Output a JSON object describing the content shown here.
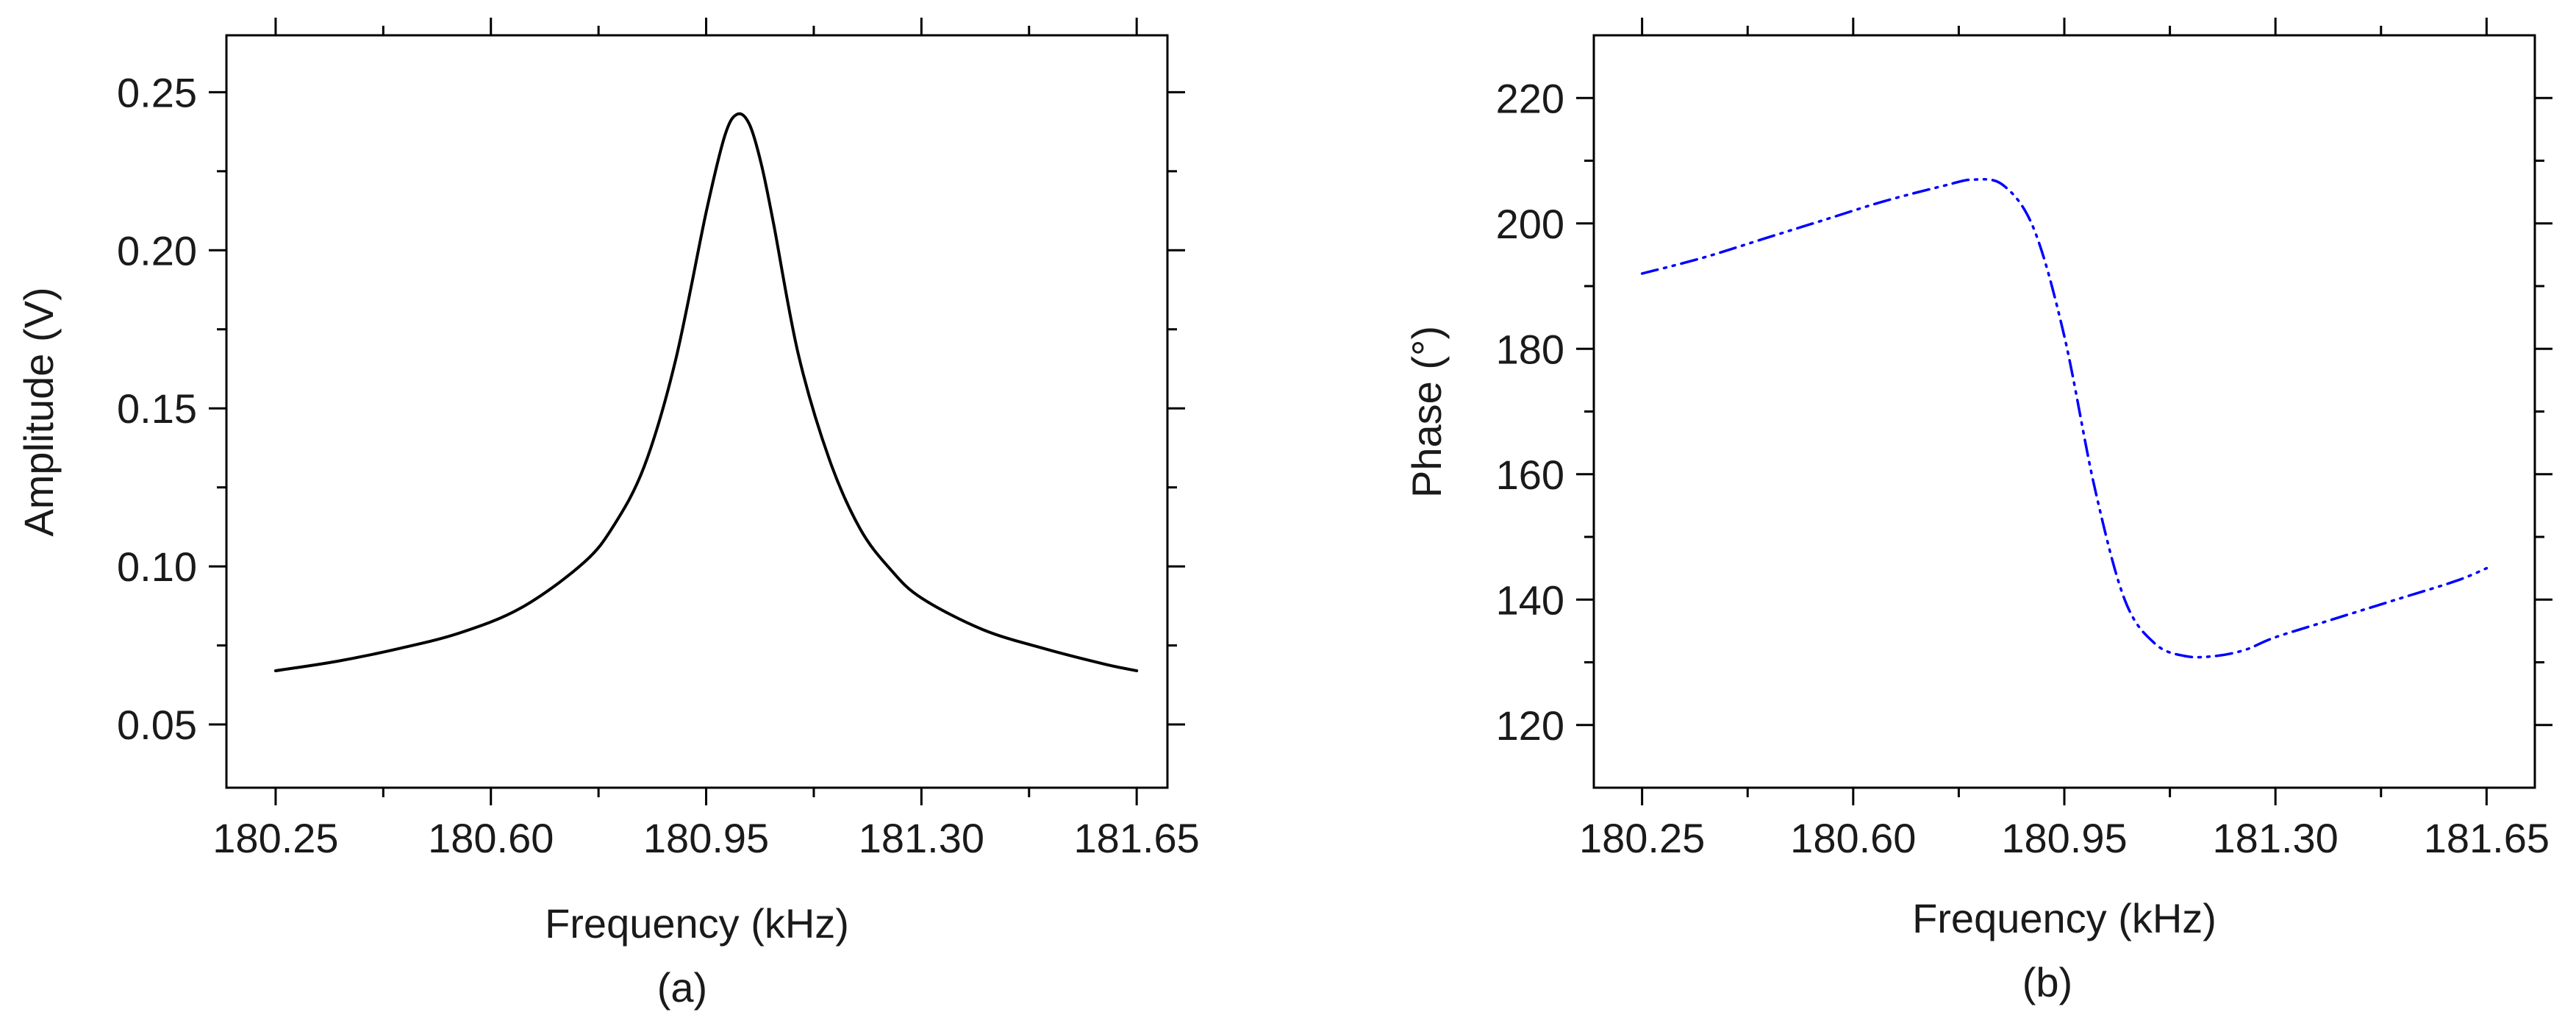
{
  "chart_data": [
    {
      "type": "line",
      "panel_label": "(a)",
      "xlabel": "Frequency (kHz)",
      "ylabel": "Amplitude (V)",
      "xlim": [
        180.17,
        181.7
      ],
      "ylim": [
        0.03,
        0.268
      ],
      "xticks": [
        180.25,
        180.6,
        180.95,
        181.3,
        181.65
      ],
      "xtick_labels": [
        "180.25",
        "180.60",
        "180.95",
        "181.30",
        "181.65"
      ],
      "yticks": [
        0.05,
        0.1,
        0.15,
        0.2,
        0.25
      ],
      "ytick_labels": [
        "0.05",
        "0.10",
        "0.15",
        "0.20",
        "0.25"
      ],
      "series": [
        {
          "name": "Amplitude",
          "color": "#000000",
          "style": "solid",
          "x": [
            180.25,
            180.35,
            180.45,
            180.55,
            180.65,
            180.75,
            180.8,
            180.85,
            180.9,
            180.95,
            180.98,
            181.0,
            181.02,
            181.04,
            181.06,
            181.1,
            181.15,
            181.2,
            181.25,
            181.3,
            181.4,
            181.5,
            181.6,
            181.65
          ],
          "y": [
            0.067,
            0.07,
            0.074,
            0.079,
            0.087,
            0.101,
            0.113,
            0.132,
            0.165,
            0.212,
            0.236,
            0.243,
            0.24,
            0.227,
            0.208,
            0.167,
            0.134,
            0.112,
            0.099,
            0.09,
            0.08,
            0.074,
            0.069,
            0.067
          ]
        }
      ]
    },
    {
      "type": "line",
      "panel_label": "(b)",
      "xlabel": "Frequency (kHz)",
      "ylabel": "Phase (°)",
      "xlim": [
        180.17,
        181.73
      ],
      "ylim": [
        110,
        230
      ],
      "xticks": [
        180.25,
        180.6,
        180.95,
        181.3,
        181.65
      ],
      "xtick_labels": [
        "180.25",
        "180.60",
        "180.95",
        "181.30",
        "181.65"
      ],
      "yticks": [
        120,
        140,
        160,
        180,
        200,
        220
      ],
      "ytick_labels": [
        "120",
        "140",
        "160",
        "180",
        "200",
        "220"
      ],
      "series": [
        {
          "name": "Phase",
          "color": "#0000ff",
          "style": "dash-dot-dot",
          "x": [
            180.25,
            180.35,
            180.45,
            180.55,
            180.65,
            180.75,
            180.8,
            180.85,
            180.9,
            180.95,
            181.0,
            181.05,
            181.1,
            181.15,
            181.2,
            181.25,
            181.3,
            181.4,
            181.5,
            181.6,
            181.65
          ],
          "y": [
            192,
            194.5,
            197.5,
            200.5,
            203.5,
            206,
            207,
            206,
            199,
            182,
            158,
            140,
            133,
            131,
            131,
            132,
            134,
            137,
            140,
            143,
            145
          ]
        }
      ]
    }
  ]
}
